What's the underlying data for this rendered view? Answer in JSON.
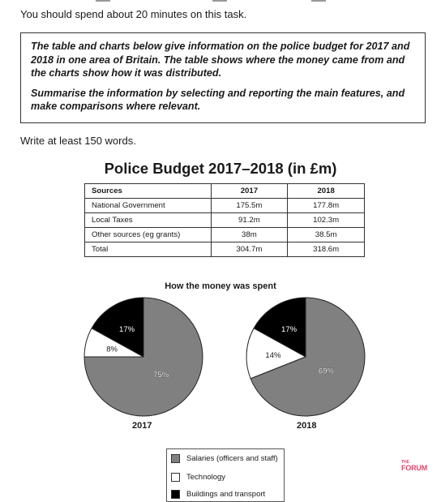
{
  "intro": "You should spend about 20 minutes on this task.",
  "task": {
    "p1": "The table and charts below give information on the police budget for 2017 and 2018 in one area of Britain. The table shows where the money came from and the charts show how it was distributed.",
    "p2": "Summarise the information by selecting and reporting the main features, and make comparisons where relevant."
  },
  "word_count": "Write at least 150 words.",
  "table": {
    "title": "Police Budget 2017–2018 (in £m)",
    "headers": [
      "Sources",
      "2017",
      "2018"
    ],
    "rows": [
      [
        "National Government",
        "175.5m",
        "177.8m"
      ],
      [
        "Local Taxes",
        "91.2m",
        "102.3m"
      ],
      [
        "Other sources (eg grants)",
        "38m",
        "38.5m"
      ],
      [
        "Total",
        "304.7m",
        "318.6m"
      ]
    ]
  },
  "chart_data": [
    {
      "type": "pie",
      "title": "How the money was spent",
      "label": "2017",
      "categories": [
        "Salaries (officers and staff)",
        "Technology",
        "Buildings and transport"
      ],
      "values": [
        75,
        8,
        17
      ],
      "labels": [
        "75%",
        "8%",
        "17%"
      ]
    },
    {
      "type": "pie",
      "title": "How the money was spent",
      "label": "2018",
      "categories": [
        "Salaries (officers and staff)",
        "Technology",
        "Buildings and transport"
      ],
      "values": [
        69,
        14,
        17
      ],
      "labels": [
        "69%",
        "14%",
        "17%"
      ]
    }
  ],
  "pies_title": "How the money was spent",
  "legend": {
    "salaries": "Salaries (officers and staff)",
    "technology": "Technology",
    "buildings": "Buildings and transport"
  },
  "colors": {
    "salaries": "#808080",
    "technology": "#ffffff",
    "buildings": "#000000"
  },
  "logo": {
    "the": "THE",
    "forum": "FORUM"
  }
}
